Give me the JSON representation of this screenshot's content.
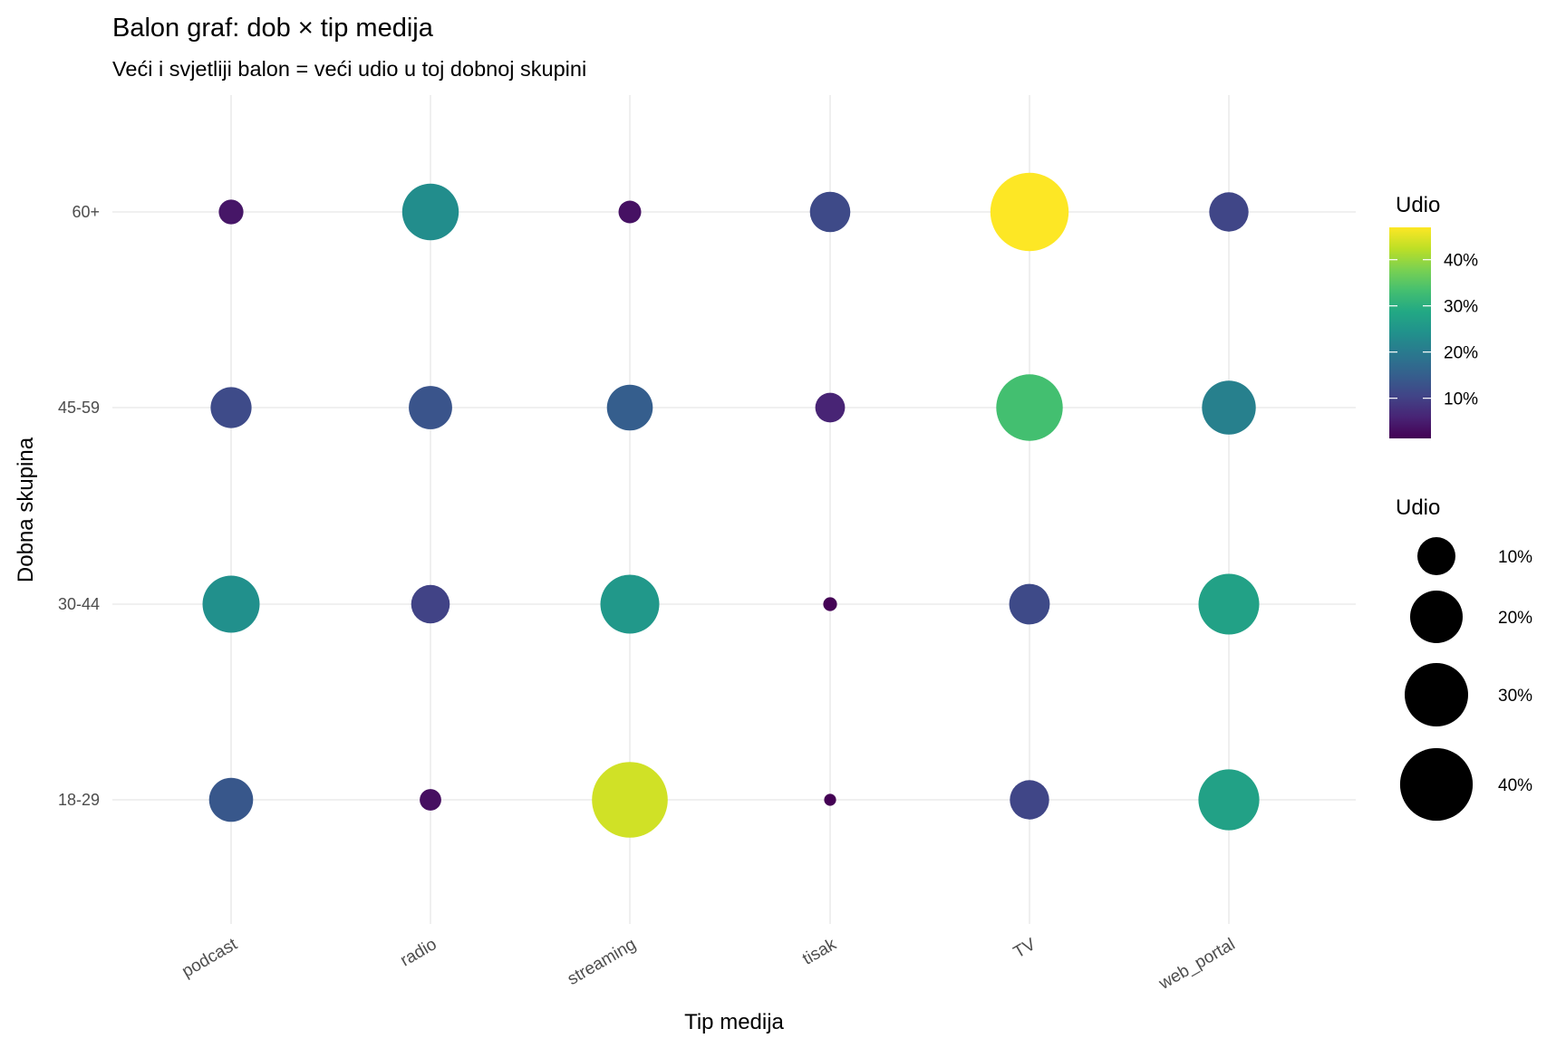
{
  "chart_data": {
    "type": "scatter",
    "subtype": "bubble",
    "title": "Balon graf: dob × tip medija",
    "subtitle": "Veći i svjetliji balon = veći udio u toj dobnoj skupini",
    "xlabel": "Tip medija",
    "ylabel": "Dobna skupina",
    "x_categories": [
      "podcast",
      "radio",
      "streaming",
      "tisak",
      "TV",
      "web_portal"
    ],
    "y_categories": [
      "18-29",
      "30-44",
      "45-59",
      "60+"
    ],
    "series": [
      {
        "name": "18-29",
        "values": [
          13.7,
          3.1,
          43.8,
          1.3,
          10.7,
          27.4
        ]
      },
      {
        "name": "30-44",
        "values": [
          23.9,
          10.3,
          25.5,
          1.5,
          11.5,
          27.3
        ]
      },
      {
        "name": "45-59",
        "values": [
          11.7,
          13.2,
          14.9,
          5.9,
          33.2,
          21.1
        ]
      },
      {
        "name": "60+",
        "values": [
          4.0,
          23.5,
          3.4,
          11.4,
          47.0,
          10.7
        ]
      }
    ],
    "value_unit": "%",
    "color_range": [
      1.3,
      47.0
    ],
    "color_palette": "viridis",
    "grid": true,
    "legend_position": "right",
    "legend_color": {
      "title": "Udio",
      "ticks": [
        10,
        20,
        30,
        40
      ],
      "labels": [
        "10%",
        "20%",
        "30%",
        "40%"
      ]
    },
    "legend_size": {
      "title": "Udio",
      "ticks": [
        10,
        20,
        30,
        40
      ],
      "labels": [
        "10%",
        "20%",
        "30%",
        "40%"
      ]
    }
  }
}
